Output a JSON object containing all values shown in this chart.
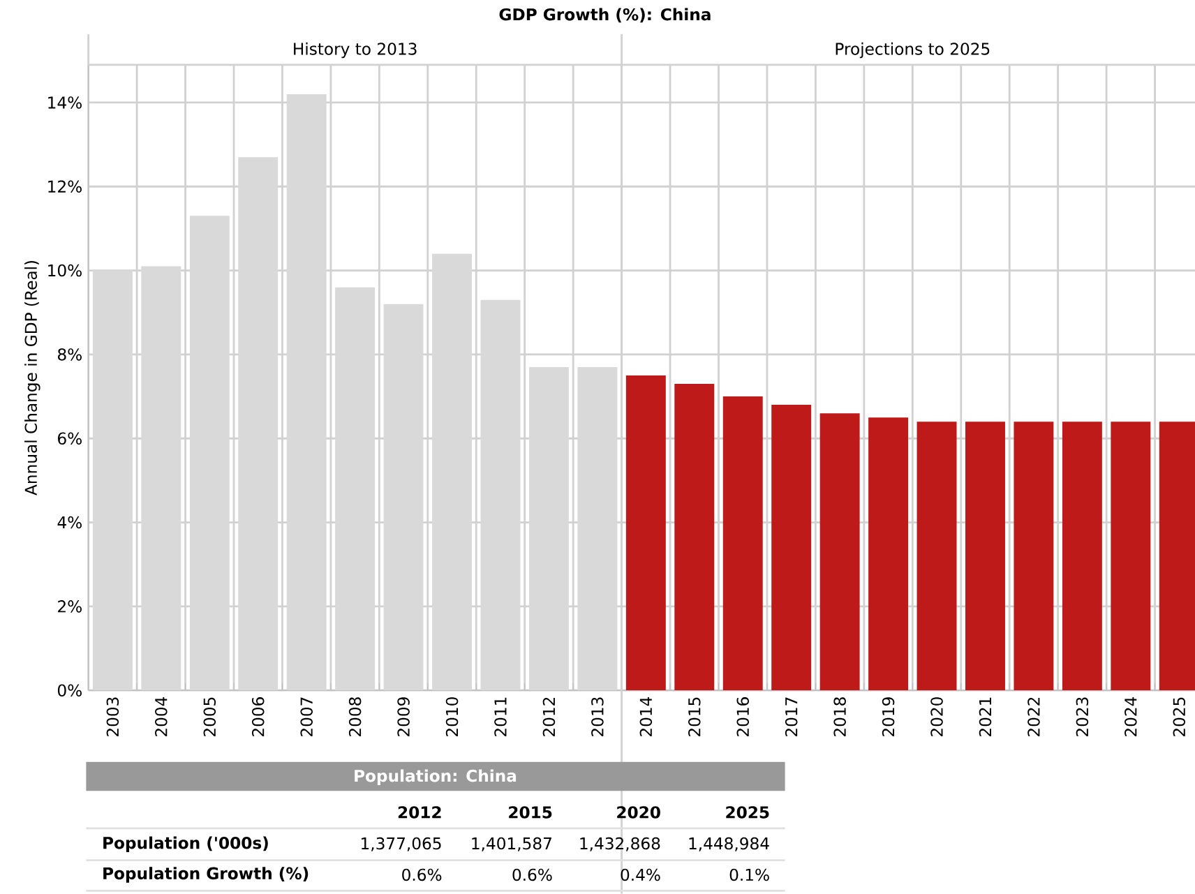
{
  "chart_data": {
    "type": "bar",
    "title": "GDP Growth (%): China",
    "ylabel": "Annual Change in GDP (Real)",
    "categories": [
      "2003",
      "2004",
      "2005",
      "2006",
      "2007",
      "2008",
      "2009",
      "2010",
      "2011",
      "2012",
      "2013",
      "2014",
      "2015",
      "2016",
      "2017",
      "2018",
      "2019",
      "2020",
      "2021",
      "2022",
      "2023",
      "2024",
      "2025"
    ],
    "values": [
      10.0,
      10.1,
      11.3,
      12.7,
      14.2,
      9.6,
      9.2,
      10.4,
      9.3,
      7.7,
      7.7,
      7.5,
      7.3,
      7.0,
      6.8,
      6.6,
      6.5,
      6.4,
      6.4,
      6.4,
      6.4,
      6.4,
      6.4
    ],
    "colors": [
      "#d9d9d9",
      "#d9d9d9",
      "#d9d9d9",
      "#d9d9d9",
      "#d9d9d9",
      "#d9d9d9",
      "#d9d9d9",
      "#d9d9d9",
      "#d9d9d9",
      "#d9d9d9",
      "#d9d9d9",
      "#be1a1a",
      "#be1a1a",
      "#be1a1a",
      "#be1a1a",
      "#be1a1a",
      "#be1a1a",
      "#be1a1a",
      "#be1a1a",
      "#be1a1a",
      "#be1a1a",
      "#be1a1a",
      "#be1a1a"
    ],
    "ylim": [
      0,
      14.9
    ],
    "yticks": [
      {
        "value": 0,
        "label": "0%"
      },
      {
        "value": 2,
        "label": "2%"
      },
      {
        "value": 4,
        "label": "4%"
      },
      {
        "value": 6,
        "label": "6%"
      },
      {
        "value": 8,
        "label": "8%"
      },
      {
        "value": 10,
        "label": "10%"
      },
      {
        "value": 12,
        "label": "12%"
      },
      {
        "value": 14,
        "label": "14%"
      }
    ],
    "grid": true,
    "annotations": [
      "History to 2013",
      "Projections to 2025",
      "Population: China",
      "2012",
      "2015",
      "2020",
      "2025",
      "Population ('000s)",
      "1,377,065",
      "1,401,587",
      "1,432,868",
      "1,448,984",
      "Population Growth (%)",
      "0.6%",
      "0.6%",
      "0.4%",
      "0.1%"
    ]
  }
}
